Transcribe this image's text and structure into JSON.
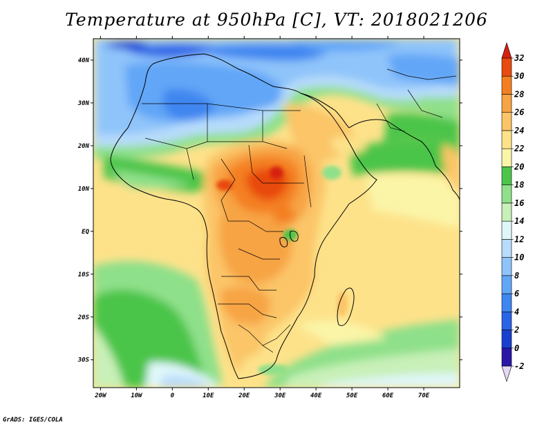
{
  "title": "Temperature at 950hPa [C], VT: 2018021206",
  "credit": "GrADS: IGES/COLA",
  "map": {
    "lon_range": [
      -22,
      80
    ],
    "lat_range": [
      -36.5,
      45
    ],
    "lon_ticks": [
      {
        "value": -20,
        "label": "20W"
      },
      {
        "value": -10,
        "label": "10W"
      },
      {
        "value": 0,
        "label": "0"
      },
      {
        "value": 10,
        "label": "10E"
      },
      {
        "value": 20,
        "label": "20E"
      },
      {
        "value": 30,
        "label": "30E"
      },
      {
        "value": 40,
        "label": "40E"
      },
      {
        "value": 50,
        "label": "50E"
      },
      {
        "value": 60,
        "label": "60E"
      },
      {
        "value": 70,
        "label": "70E"
      }
    ],
    "lat_ticks": [
      {
        "value": 40,
        "label": "40N"
      },
      {
        "value": 30,
        "label": "30N"
      },
      {
        "value": 20,
        "label": "20N"
      },
      {
        "value": 10,
        "label": "10N"
      },
      {
        "value": 0,
        "label": "EQ"
      },
      {
        "value": -10,
        "label": "10S"
      },
      {
        "value": -20,
        "label": "20S"
      },
      {
        "value": -30,
        "label": "30S"
      }
    ]
  },
  "colorbar": {
    "levels": [
      "-2",
      "0",
      "2",
      "4",
      "6",
      "8",
      "10",
      "12",
      "14",
      "16",
      "18",
      "20",
      "22",
      "24",
      "26",
      "28",
      "30",
      "32"
    ],
    "colors": [
      "#2a17a8",
      "#1b3fcf",
      "#2a64e6",
      "#3f86f0",
      "#62a6f7",
      "#8fc4fa",
      "#b8dcfb",
      "#e0f7fa",
      "#c8f0b8",
      "#8fe08a",
      "#4cc54a",
      "#fbf5a8",
      "#fde28a",
      "#fbc567",
      "#f7a444",
      "#f47f20",
      "#e84a10"
    ],
    "under_color": "#e4d8f4",
    "over_color": "#d62010"
  }
}
